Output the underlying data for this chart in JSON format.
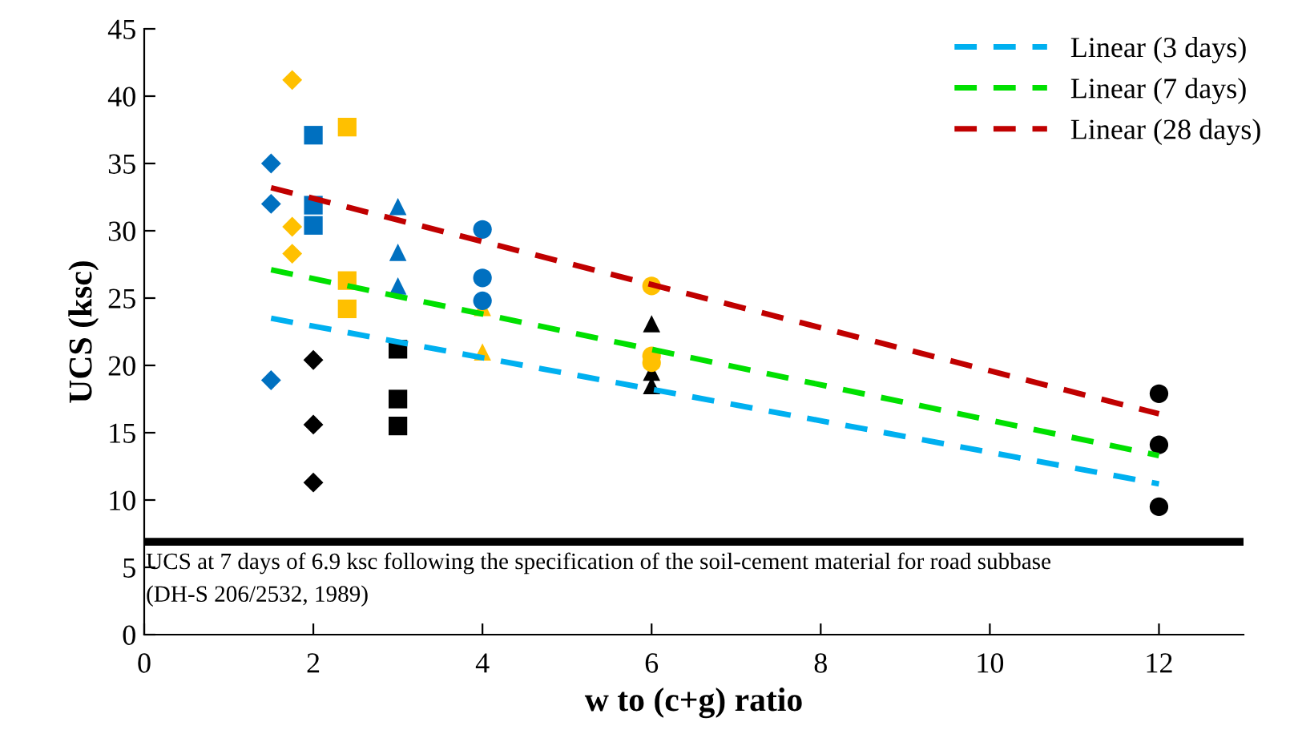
{
  "chart_data": {
    "type": "scatter",
    "xlabel": "w to (c+g) ratio",
    "ylabel": "UCS (ksc)",
    "xlim": [
      0,
      13
    ],
    "xticks": [
      0,
      2,
      4,
      6,
      8,
      10,
      12
    ],
    "ylim": [
      0,
      45
    ],
    "yticks": [
      0,
      5,
      10,
      15,
      20,
      25,
      30,
      35,
      40,
      45
    ],
    "grid": false,
    "legend": "top right",
    "series": [
      {
        "color": "#0070c0",
        "marker": "diamond",
        "x": [
          1.5,
          1.5,
          1.5
        ],
        "values": [
          35,
          32,
          18.9
        ]
      },
      {
        "color": "#ffc000",
        "marker": "diamond",
        "x": [
          1.75,
          1.75,
          1.75
        ],
        "values": [
          41.2,
          30.3,
          28.3
        ]
      },
      {
        "color": "#000000",
        "marker": "diamond",
        "x": [
          2,
          2,
          2
        ],
        "values": [
          20.4,
          15.6,
          11.3
        ]
      },
      {
        "color": "#0070c0",
        "marker": "square",
        "x": [
          2,
          2,
          2
        ],
        "values": [
          37.1,
          31.9,
          30.4
        ]
      },
      {
        "color": "#ffc000",
        "marker": "square",
        "x": [
          2.4,
          2.4,
          2.4
        ],
        "values": [
          37.7,
          26.3,
          24.2
        ]
      },
      {
        "color": "#000000",
        "marker": "square",
        "x": [
          3,
          3,
          3
        ],
        "values": [
          21.2,
          17.5,
          15.5
        ]
      },
      {
        "color": "#0070c0",
        "marker": "triangle",
        "x": [
          3,
          3,
          3
        ],
        "values": [
          31.8,
          28.4,
          25.9
        ]
      },
      {
        "color": "#ffc000",
        "marker": "triangle",
        "x": [
          4,
          4
        ],
        "values": [
          24.3,
          21.0
        ]
      },
      {
        "color": "#000000",
        "marker": "triangle",
        "x": [
          6,
          6,
          6
        ],
        "values": [
          23.1,
          19.5,
          18.5
        ]
      },
      {
        "color": "#0070c0",
        "marker": "circle",
        "x": [
          4,
          4,
          4
        ],
        "values": [
          30.1,
          26.5,
          24.8
        ]
      },
      {
        "color": "#ffc000",
        "marker": "circle",
        "x": [
          6,
          6,
          6
        ],
        "values": [
          25.9,
          20.7,
          20.2
        ]
      },
      {
        "color": "#000000",
        "marker": "circle",
        "x": [
          12,
          12,
          12
        ],
        "values": [
          17.9,
          14.1,
          9.5
        ]
      },
      {
        "type": "line",
        "name": "Linear (3 days)",
        "color": "#00b0f0",
        "line_style": "dashed",
        "marker": "none",
        "x": [
          1.5,
          12
        ],
        "values": [
          23.5,
          11.2
        ]
      },
      {
        "type": "line",
        "name": "Linear (7 days)",
        "color": "#00e000",
        "line_style": "dashed",
        "marker": "none",
        "x": [
          1.5,
          12
        ],
        "values": [
          27.1,
          13.3
        ]
      },
      {
        "type": "line",
        "name": "Linear (28 days)",
        "color": "#c00000",
        "line_style": "dashed",
        "marker": "none",
        "x": [
          1.5,
          12
        ],
        "values": [
          33.2,
          16.4
        ]
      }
    ],
    "ref_lines": [
      {
        "axis": "y",
        "value": 6.9,
        "color": "#000000",
        "line_style": "solid",
        "label": "UCS at 7 days of 6.9 ksc following the specification of the soil-cement material for road subbase\n(DH-S 206/2532, 1989)"
      }
    ]
  }
}
